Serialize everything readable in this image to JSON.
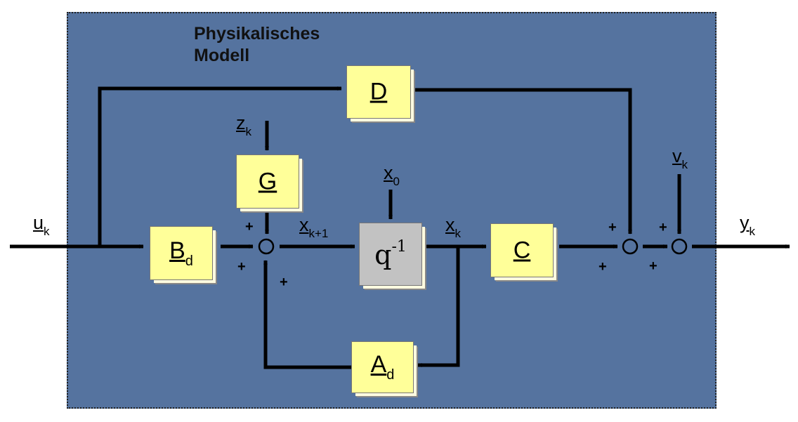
{
  "title": {
    "line1": "Physikalisches",
    "line2": "Modell"
  },
  "blocks": {
    "d": {
      "label": "D",
      "sub": ""
    },
    "g": {
      "label": "G",
      "sub": ""
    },
    "bd": {
      "label": "B",
      "sub": "d"
    },
    "delay": {
      "label": "q",
      "sup": "-1"
    },
    "c": {
      "label": "C",
      "sub": ""
    },
    "ad": {
      "label": "A",
      "sub": "d"
    }
  },
  "signals": {
    "uk": {
      "main": "u",
      "sub": "k"
    },
    "zk": {
      "main": "z",
      "sub": "k"
    },
    "x0": {
      "main": "x",
      "sub": "0"
    },
    "xk1": {
      "main": "x",
      "sub": "k+1"
    },
    "xk": {
      "main": "x",
      "sub": "k"
    },
    "vk": {
      "main": "v",
      "sub": "k"
    },
    "yk": {
      "main": "y",
      "sub": "k"
    }
  },
  "signs": {
    "plus": "+"
  },
  "colors": {
    "panel": "#55739f",
    "block": "#ffff99",
    "delay_block": "#c2c2c2",
    "line": "#000000"
  }
}
